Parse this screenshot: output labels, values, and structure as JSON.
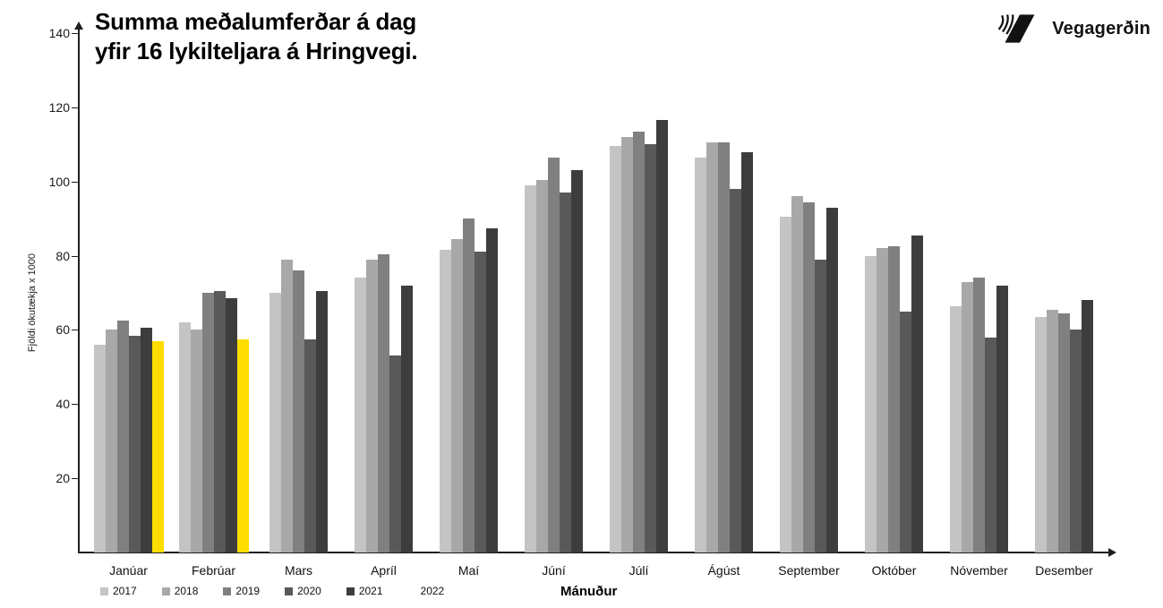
{
  "header": {
    "title_line1": "Summa meðalumferðar á dag",
    "title_line2": "yfir 16 lykilteljara á Hringvegi."
  },
  "logo": {
    "text": "Vegagerðin"
  },
  "chart_data": {
    "type": "bar",
    "title": "Summa meðalumferðar á dag yfir 16 lykilteljara á Hringvegi.",
    "xlabel": "Mánuður",
    "ylabel": "Fjöldi ökutækja x 1000",
    "ylim": [
      0,
      140
    ],
    "yticks": [
      20,
      40,
      60,
      80,
      100,
      120,
      140
    ],
    "grid": false,
    "legend_position": "bottom-left",
    "categories": [
      "Janúar",
      "Febrúar",
      "Mars",
      "Apríl",
      "Maí",
      "Júní",
      "Júlí",
      "Ágúst",
      "September",
      "Október",
      "Nóvember",
      "Desember"
    ],
    "series": [
      {
        "name": "2017",
        "color": "#c4c4c4",
        "values": [
          56,
          62,
          70,
          74,
          81.5,
          99,
          109.5,
          106.5,
          90.5,
          80,
          66.5,
          63.5
        ]
      },
      {
        "name": "2018",
        "color": "#a8a8a8",
        "values": [
          60,
          60,
          79,
          79,
          84.5,
          100.5,
          112,
          110.5,
          96,
          82,
          73,
          65.5
        ]
      },
      {
        "name": "2019",
        "color": "#808080",
        "values": [
          62.5,
          70,
          76,
          80.5,
          90,
          106.5,
          113.5,
          110.5,
          94.5,
          82.5,
          74,
          64.5
        ]
      },
      {
        "name": "2020",
        "color": "#595959",
        "values": [
          58.5,
          70.5,
          57.5,
          53,
          81,
          97,
          110,
          98,
          79,
          65,
          58,
          60
        ]
      },
      {
        "name": "2021",
        "color": "#3d3d3d",
        "values": [
          60.5,
          68.5,
          70.5,
          72,
          87.5,
          103,
          116.5,
          108,
          93,
          85.5,
          72,
          68
        ]
      },
      {
        "name": "2022",
        "color": "#ffdd00",
        "swatch_color": "#ffffff",
        "values": [
          57,
          57.5,
          null,
          null,
          null,
          null,
          null,
          null,
          null,
          null,
          null,
          null
        ]
      }
    ]
  }
}
